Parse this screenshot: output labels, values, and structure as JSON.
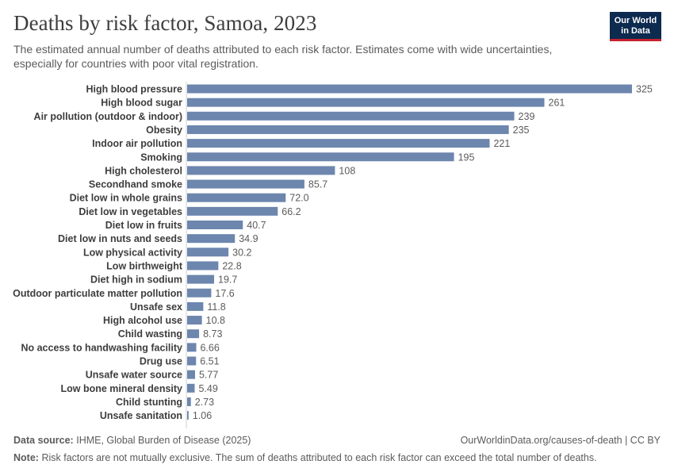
{
  "header": {
    "title": "Deaths by risk factor, Samoa, 2023",
    "subtitle": "The estimated annual number of deaths attributed to each risk factor. Estimates come with wide uncertainties, especially for countries with poor vital registration.",
    "logo_line1": "Our World",
    "logo_line2": "in Data"
  },
  "footer": {
    "source_label": "Data source:",
    "source_text": "IHME, Global Burden of Disease (2025)",
    "url": "OurWorldinData.org/causes-of-death | CC BY",
    "note_label": "Note:",
    "note_text": "Risk factors are not mutually exclusive. The sum of deaths attributed to each risk factor can exceed the total number of deaths."
  },
  "colors": {
    "bar": "#6d86ae",
    "axis": "#d0d0d0"
  },
  "chart_data": {
    "type": "bar",
    "orientation": "horizontal",
    "title": "Deaths by risk factor, Samoa, 2023",
    "xlim": [
      0,
      325
    ],
    "categories": [
      "High blood pressure",
      "High blood sugar",
      "Air pollution (outdoor & indoor)",
      "Obesity",
      "Indoor air pollution",
      "Smoking",
      "High cholesterol",
      "Secondhand smoke",
      "Diet low in whole grains",
      "Diet low in vegetables",
      "Diet low in fruits",
      "Diet low in nuts and seeds",
      "Low physical activity",
      "Low birthweight",
      "Diet high in sodium",
      "Outdoor particulate matter pollution",
      "Unsafe sex",
      "High alcohol use",
      "Child wasting",
      "No access to handwashing facility",
      "Drug use",
      "Unsafe water source",
      "Low bone mineral density",
      "Child stunting",
      "Unsafe sanitation"
    ],
    "values": [
      325,
      261,
      239,
      235,
      221,
      195,
      108,
      85.7,
      72.0,
      66.2,
      40.7,
      34.9,
      30.2,
      22.8,
      19.7,
      17.6,
      11.8,
      10.8,
      8.73,
      6.66,
      6.51,
      5.77,
      5.49,
      2.73,
      1.06
    ],
    "value_labels": [
      "325",
      "261",
      "239",
      "235",
      "221",
      "195",
      "108",
      "85.7",
      "72.0",
      "66.2",
      "40.7",
      "34.9",
      "30.2",
      "22.8",
      "19.7",
      "17.6",
      "11.8",
      "10.8",
      "8.73",
      "6.66",
      "6.51",
      "5.77",
      "5.49",
      "2.73",
      "1.06"
    ]
  }
}
